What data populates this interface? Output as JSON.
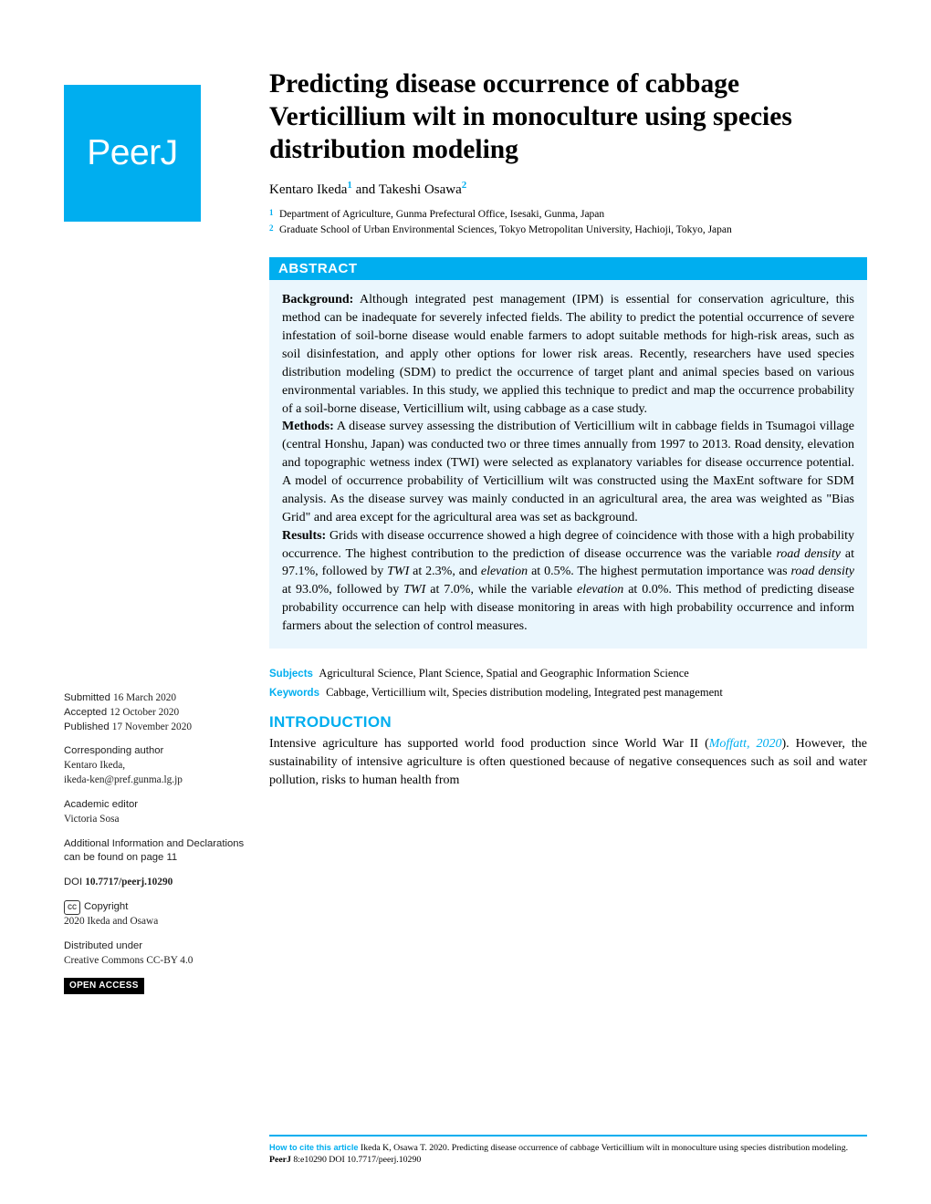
{
  "logo": {
    "text": "PeerJ"
  },
  "article": {
    "title": "Predicting disease occurrence of cabbage Verticillium wilt in monoculture using species distribution modeling",
    "authors_html": "Kentaro Ikeda<sup>1</sup> and Takeshi Osawa<sup>2</sup>",
    "affiliations": [
      {
        "num": "1",
        "text": "Department of Agriculture, Gunma Prefectural Office, Isesaki, Gunma, Japan"
      },
      {
        "num": "2",
        "text": "Graduate School of Urban Environmental Sciences, Tokyo Metropolitan University, Hachioji, Tokyo, Japan"
      }
    ]
  },
  "abstract": {
    "header": "ABSTRACT",
    "body_html": "<b>Background:</b> Although integrated pest management (IPM) is essential for conservation agriculture, this method can be inadequate for severely infected fields. The ability to predict the potential occurrence of severe infestation of soil-borne disease would enable farmers to adopt suitable methods for high-risk areas, such as soil disinfestation, and apply other options for lower risk areas. Recently, researchers have used species distribution modeling (SDM) to predict the occurrence of target plant and animal species based on various environmental variables. In this study, we applied this technique to predict and map the occurrence probability of a soil-borne disease, Verticillium wilt, using cabbage as a case study.<br><b>Methods:</b> A disease survey assessing the distribution of Verticillium wilt in cabbage fields in Tsumagoi village (central Honshu, Japan) was conducted two or three times annually from 1997 to 2013. Road density, elevation and topographic wetness index (TWI) were selected as explanatory variables for disease occurrence potential. A model of occurrence probability of Verticillium wilt was constructed using the MaxEnt software for SDM analysis. As the disease survey was mainly conducted in an agricultural area, the area was weighted as \"Bias Grid\" and area except for the agricultural area was set as background.<br><b>Results:</b> Grids with disease occurrence showed a high degree of coincidence with those with a high probability occurrence. The highest contribution to the prediction of disease occurrence was the variable <i>road density</i> at 97.1%, followed by <i>TWI</i> at 2.3%, and <i>elevation</i> at 0.5%. The highest permutation importance was <i>road density</i> at 93.0%, followed by <i>TWI</i> at 7.0%, while the variable <i>elevation</i> at 0.0%. This method of predicting disease probability occurrence can help with disease monitoring in areas with high probability occurrence and inform farmers about the selection of control measures."
  },
  "taxlines": {
    "subjects_label": "Subjects",
    "subjects": "Agricultural Science, Plant Science, Spatial and Geographic Information Science",
    "keywords_label": "Keywords",
    "keywords": "Cabbage, Verticillium wilt, Species distribution modeling, Integrated pest management"
  },
  "intro": {
    "header": "INTRODUCTION",
    "body_html": "Intensive agriculture has supported world food production since World War II (<span class=\"cite\">Moffatt, 2020</span>). However, the sustainability of intensive agriculture is often questioned because of negative consequences such as soil and water pollution, risks to human health from"
  },
  "sidebar": {
    "submitted_label": "Submitted",
    "submitted_date": "16 March 2020",
    "accepted_label": "Accepted",
    "accepted_date": "12 October 2020",
    "published_label": "Published",
    "published_date": "17 November 2020",
    "corr_label": "Corresponding author",
    "corr_name": "Kentaro Ikeda,",
    "corr_email": "ikeda-ken@pref.gunma.lg.jp",
    "editor_label": "Academic editor",
    "editor_name": "Victoria Sosa",
    "addinfo": "Additional Information and Declarations can be found on page 11",
    "doi_label": "DOI",
    "doi": "10.7717/peerj.10290",
    "copy_label": "Copyright",
    "copy_holder": "2020 Ikeda and Osawa",
    "dist_label": "Distributed under",
    "dist_text": "Creative Commons CC-BY 4.0",
    "open_access": "OPEN ACCESS"
  },
  "footer": {
    "howto_label": "How to cite this article",
    "citation_html": "Ikeda K, Osawa T. 2020. Predicting disease occurrence of cabbage Verticillium wilt in monoculture using species distribution modeling. <b>PeerJ</b> 8:e10290 DOI 10.7717/peerj.10290"
  },
  "colors": {
    "brand": "#00aeef",
    "abstract_bg": "#eaf6fd"
  }
}
